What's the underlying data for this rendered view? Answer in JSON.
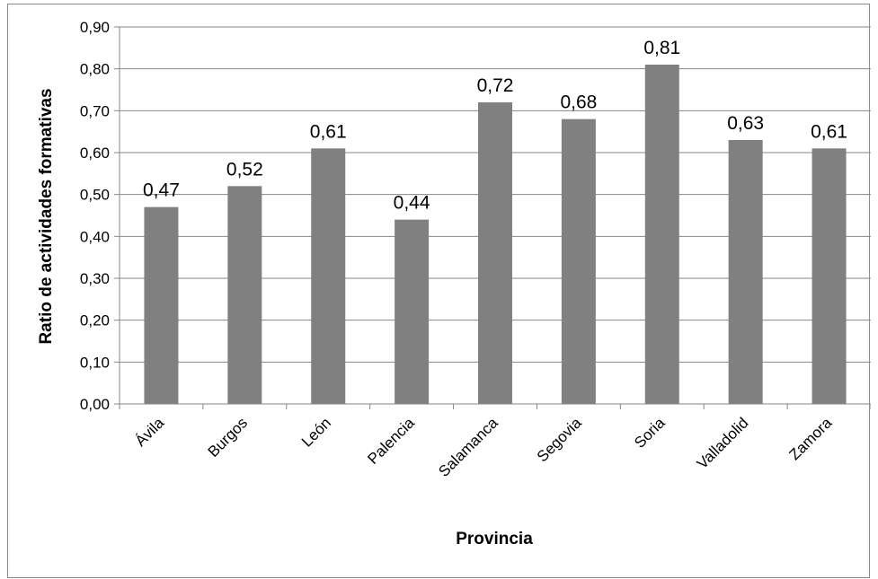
{
  "chart_data": {
    "type": "bar",
    "categories": [
      "Ávila",
      "Burgos",
      "León",
      "Palencia",
      "Salamanca",
      "Segovia",
      "Soria",
      "Valladolid",
      "Zamora"
    ],
    "values": [
      0.47,
      0.52,
      0.61,
      0.44,
      0.72,
      0.68,
      0.81,
      0.63,
      0.61
    ],
    "data_labels": [
      "0,47",
      "0,52",
      "0,61",
      "0,44",
      "0,72",
      "0,68",
      "0,81",
      "0,63",
      "0,61"
    ],
    "y_ticks": [
      "0,00",
      "0,10",
      "0,20",
      "0,30",
      "0,40",
      "0,50",
      "0,60",
      "0,70",
      "0,80",
      "0,90"
    ],
    "ylim": [
      0,
      0.9
    ],
    "title": "",
    "xlabel": "Provincia",
    "ylabel": "Ratio de actividades formativas",
    "grid": true,
    "legend": "none",
    "bar_color": "#808080",
    "grid_color": "#868686"
  }
}
